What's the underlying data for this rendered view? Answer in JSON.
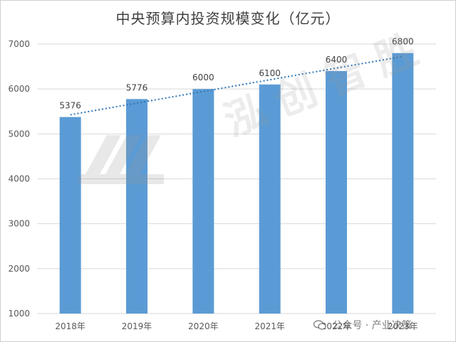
{
  "chart_data": {
    "type": "bar",
    "title": "中央预算内投资规模变化（亿元）",
    "categories": [
      "2018年",
      "2019年",
      "2020年",
      "2021年",
      "2022年",
      "2023年"
    ],
    "values": [
      5376,
      5776,
      6000,
      6100,
      6400,
      6800
    ],
    "data_labels": [
      "5376",
      "5776",
      "6000",
      "6100",
      "6400",
      "6800"
    ],
    "ylim": [
      1000,
      7000
    ],
    "yticks": [
      1000,
      2000,
      3000,
      4000,
      5000,
      6000,
      7000
    ],
    "grid": true,
    "trendline": {
      "type": "linear",
      "style": "dotted"
    },
    "colors": {
      "bar": "#5B9BD5",
      "trend": "#2E75B6",
      "grid": "#D9D9D9",
      "axis_text": "#595959"
    }
  },
  "watermark": {
    "text": "泓创智胜"
  },
  "footer": {
    "text": "公众号 · 产业决策"
  }
}
